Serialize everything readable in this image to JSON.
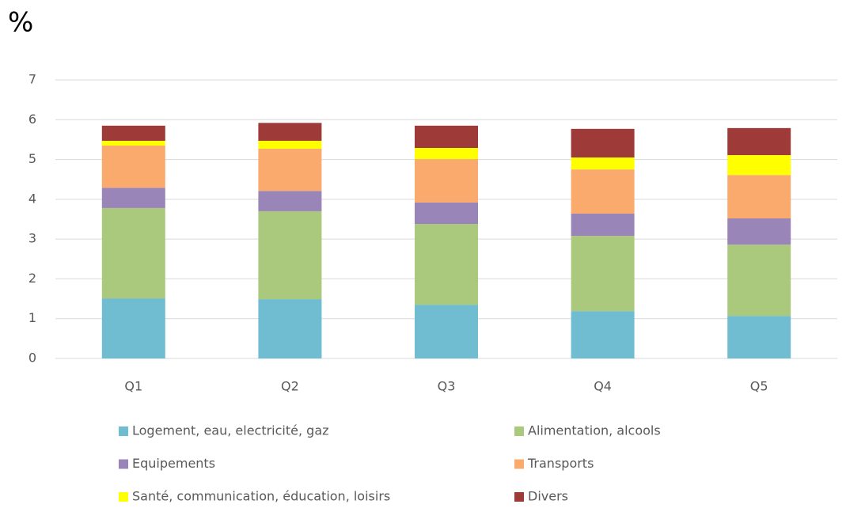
{
  "chart_data": {
    "type": "stacked_bar",
    "title": "%",
    "categories": [
      "Q1",
      "Q2",
      "Q3",
      "Q4",
      "Q5"
    ],
    "series": [
      {
        "name": "Logement, eau, electricité, gaz",
        "color": "#70bcd0",
        "values": [
          1.51,
          1.49,
          1.35,
          1.19,
          1.07
        ]
      },
      {
        "name": "Alimentation, alcools",
        "color": "#aac97c",
        "values": [
          2.27,
          2.21,
          2.03,
          1.89,
          1.79
        ]
      },
      {
        "name": "Equipements",
        "color": "#9985b8",
        "values": [
          0.51,
          0.51,
          0.54,
          0.56,
          0.66
        ]
      },
      {
        "name": "Transports",
        "color": "#f9aa6c",
        "values": [
          1.06,
          1.06,
          1.09,
          1.11,
          1.09
        ]
      },
      {
        "name": "Santé, communication, éducation, loisirs",
        "color": "#ffff00",
        "values": [
          0.12,
          0.2,
          0.28,
          0.3,
          0.5
        ]
      },
      {
        "name": "Divers",
        "color": "#9e3a38",
        "values": [
          0.38,
          0.45,
          0.56,
          0.72,
          0.68
        ]
      }
    ],
    "ylim": [
      0,
      7
    ],
    "yticks": [
      0,
      1,
      2,
      3,
      4,
      5,
      6,
      7
    ],
    "grid": true
  }
}
